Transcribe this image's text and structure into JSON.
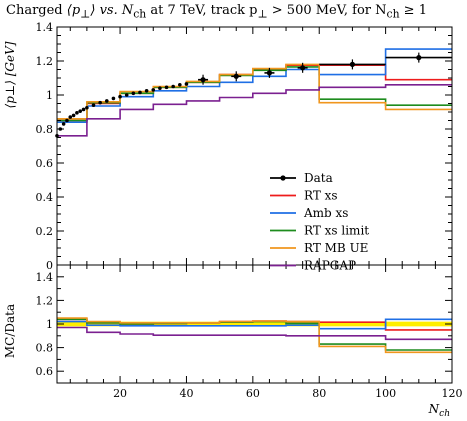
{
  "title": {
    "part1": "Charged ",
    "part2": "⟨p",
    "part3": "⊥",
    "part4": "⟩ vs. N",
    "part5": "ch",
    "part6": " at 7 TeV, track p",
    "part7": "⊥",
    "part8": " > 500 MeV, for N",
    "part9": "ch",
    "part10": " ≥ 1"
  },
  "chart_data": [
    {
      "type": "line",
      "panel": "main",
      "xlabel": "N_ch",
      "ylabel": "⟨p⊥⟩  [GeV]",
      "xlim": [
        1,
        120
      ],
      "ylim": [
        0,
        1.4
      ],
      "yticks": [
        0,
        0.2,
        0.4,
        0.6,
        0.8,
        1,
        1.2,
        1.4
      ],
      "yticklabels": [
        "0",
        "0.2",
        "0.4",
        "0.6",
        "0.8",
        "1",
        "1.2",
        "1.4"
      ],
      "legend_position": "bottom-right",
      "series": [
        {
          "name": "Data",
          "color": "#000000",
          "marker": "point",
          "x": [
            1,
            2,
            3,
            4,
            5,
            6,
            7,
            8,
            9,
            10,
            12,
            14,
            16,
            18,
            20,
            22,
            24,
            26,
            28,
            30,
            32,
            34,
            36,
            38,
            40,
            45,
            55,
            65,
            75,
            90,
            110
          ],
          "y": [
            0.76,
            0.8,
            0.83,
            0.85,
            0.87,
            0.88,
            0.895,
            0.905,
            0.915,
            0.925,
            0.94,
            0.955,
            0.965,
            0.98,
            0.99,
            1.0,
            1.01,
            1.015,
            1.025,
            1.03,
            1.04,
            1.045,
            1.05,
            1.06,
            1.065,
            1.09,
            1.11,
            1.13,
            1.16,
            1.18,
            1.22
          ]
        },
        {
          "name": "RT xs",
          "color": "#ee1c1c",
          "edges": [
            1,
            10,
            20,
            30,
            40,
            50,
            60,
            70,
            80,
            100,
            120
          ],
          "values": [
            0.85,
            0.95,
            1.01,
            1.045,
            1.075,
            1.12,
            1.15,
            1.175,
            1.175,
            1.09,
            1.09
          ]
        },
        {
          "name": "Amb xs",
          "color": "#1f6fe5",
          "edges": [
            1,
            10,
            20,
            30,
            40,
            50,
            60,
            70,
            80,
            100,
            120
          ],
          "values": [
            0.84,
            0.935,
            0.99,
            1.025,
            1.05,
            1.075,
            1.11,
            1.15,
            1.12,
            1.27,
            1.27
          ]
        },
        {
          "name": "RT xs limit",
          "color": "#1e8c1e",
          "edges": [
            1,
            10,
            20,
            30,
            40,
            50,
            60,
            70,
            80,
            100,
            120
          ],
          "values": [
            0.85,
            0.955,
            1.01,
            1.045,
            1.075,
            1.115,
            1.145,
            1.165,
            0.975,
            0.94,
            0.94
          ]
        },
        {
          "name": "RT MB UE",
          "color": "#f0961e",
          "edges": [
            1,
            10,
            20,
            30,
            40,
            50,
            60,
            70,
            80,
            100,
            120
          ],
          "values": [
            0.86,
            0.96,
            1.02,
            1.05,
            1.08,
            1.12,
            1.155,
            1.18,
            0.955,
            0.915,
            0.915
          ]
        },
        {
          "name": "RAPGAP",
          "color": "#7b2090",
          "edges": [
            1,
            10,
            20,
            30,
            40,
            50,
            60,
            70,
            80,
            100,
            120
          ],
          "values": [
            0.76,
            0.86,
            0.915,
            0.945,
            0.965,
            0.985,
            1.01,
            1.03,
            1.045,
            1.06,
            1.06
          ]
        }
      ]
    },
    {
      "type": "line",
      "panel": "ratio",
      "xlabel": "N_ch",
      "ylabel": "MC/Data",
      "xlim": [
        1,
        120
      ],
      "ylim": [
        0.5,
        1.5
      ],
      "xticks": [
        20,
        40,
        60,
        80,
        100,
        120
      ],
      "xticklabels": [
        "20",
        "40",
        "60",
        "80",
        "100",
        "120"
      ],
      "yticks": [
        0.6,
        0.8,
        1,
        1.2,
        1.4
      ],
      "yticklabels": [
        "0.6",
        "0.8",
        "1",
        "1.2",
        "1.4"
      ],
      "data_band": {
        "color": "#ffee00",
        "lower": 0.98,
        "upper": 1.02
      },
      "series": [
        {
          "name": "RT xs",
          "color": "#ee1c1c",
          "edges": [
            1,
            10,
            20,
            30,
            40,
            50,
            60,
            70,
            80,
            100,
            120
          ],
          "values": [
            1.04,
            1.01,
            1.0,
            1.005,
            1.01,
            1.02,
            1.025,
            1.02,
            1.015,
            0.95,
            0.95
          ]
        },
        {
          "name": "Amb xs",
          "color": "#1f6fe5",
          "edges": [
            1,
            10,
            20,
            30,
            40,
            50,
            60,
            70,
            80,
            100,
            120
          ],
          "values": [
            1.02,
            0.99,
            0.985,
            0.985,
            0.985,
            0.985,
            0.985,
            0.99,
            0.96,
            1.04,
            1.04
          ]
        },
        {
          "name": "RT xs limit",
          "color": "#1e8c1e",
          "edges": [
            1,
            10,
            20,
            30,
            40,
            50,
            60,
            70,
            80,
            100,
            120
          ],
          "values": [
            1.04,
            1.01,
            1.0,
            1.005,
            1.01,
            1.015,
            1.02,
            1.005,
            0.83,
            0.78,
            0.78
          ]
        },
        {
          "name": "RT MB UE",
          "color": "#f0961e",
          "edges": [
            1,
            10,
            20,
            30,
            40,
            50,
            60,
            70,
            80,
            100,
            120
          ],
          "values": [
            1.05,
            1.02,
            1.01,
            1.01,
            1.01,
            1.02,
            1.025,
            1.02,
            0.81,
            0.76,
            0.76
          ]
        },
        {
          "name": "RAPGAP",
          "color": "#7b2090",
          "edges": [
            1,
            10,
            20,
            30,
            40,
            50,
            60,
            70,
            80,
            100,
            120
          ],
          "values": [
            0.97,
            0.93,
            0.915,
            0.905,
            0.905,
            0.905,
            0.905,
            0.9,
            0.9,
            0.87,
            0.87
          ]
        }
      ]
    }
  ]
}
